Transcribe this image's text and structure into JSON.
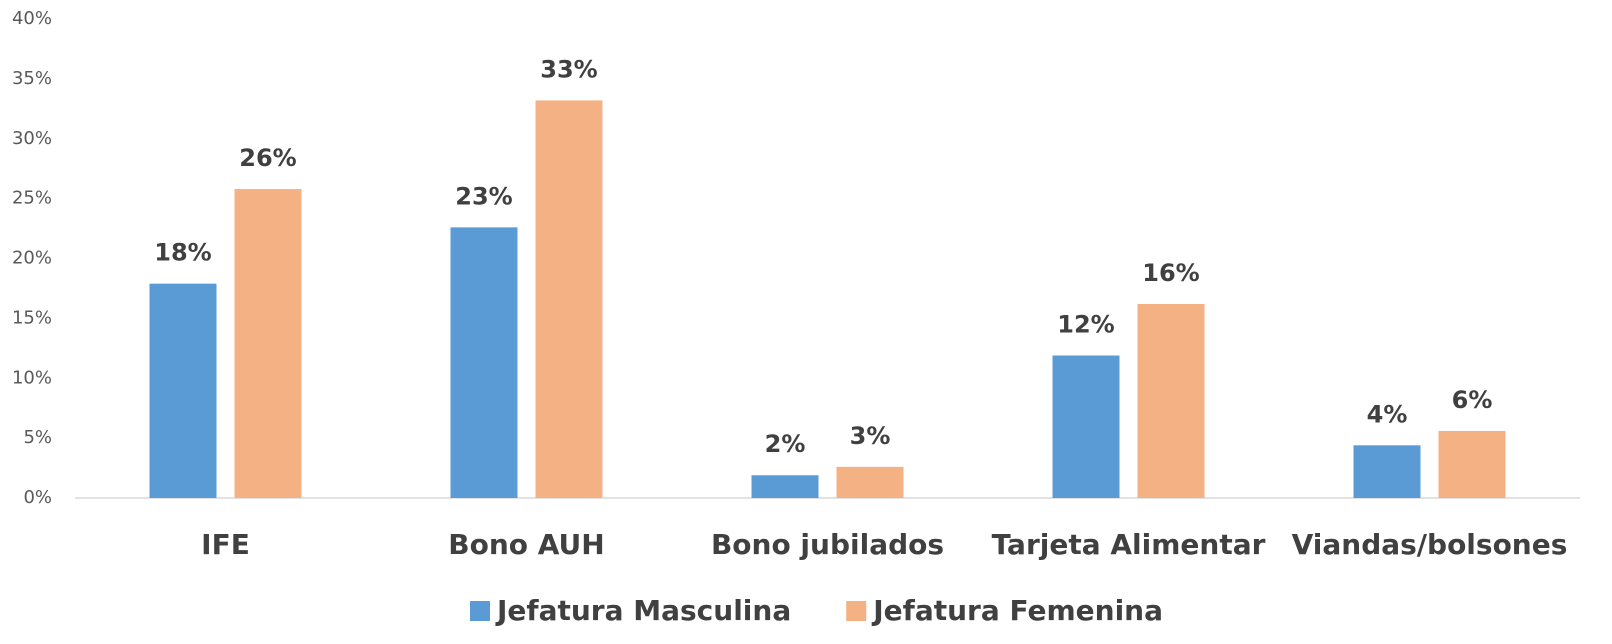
{
  "chart_data": {
    "type": "bar",
    "categories": [
      "IFE",
      "Bono AUH",
      "Bono jubilados",
      "Tarjeta Alimentar",
      "Viandas/bolsones"
    ],
    "series": [
      {
        "name": "Jefatura Masculina",
        "color": "#5b9bd5",
        "values": [
          17.9,
          22.6,
          1.9,
          11.9,
          4.4
        ],
        "value_labels": [
          "18%",
          "23%",
          "2%",
          "12%",
          "4%"
        ]
      },
      {
        "name": "Jefatura Femenina",
        "color": "#f4b183",
        "values": [
          25.8,
          33.2,
          2.6,
          16.2,
          5.6
        ],
        "value_labels": [
          "26%",
          "33%",
          "3%",
          "16%",
          "6%"
        ]
      }
    ],
    "ylim": [
      0,
      40
    ],
    "yticks": [
      {
        "value": 0,
        "label": "0%"
      },
      {
        "value": 5,
        "label": "5%"
      },
      {
        "value": 10,
        "label": "10%"
      },
      {
        "value": 15,
        "label": "15%"
      },
      {
        "value": 20,
        "label": "20%"
      },
      {
        "value": 25,
        "label": "25%"
      },
      {
        "value": 30,
        "label": "30%"
      },
      {
        "value": 35,
        "label": "35%"
      },
      {
        "value": 40,
        "label": "40%"
      }
    ],
    "grid": false,
    "legend": "bottom"
  }
}
